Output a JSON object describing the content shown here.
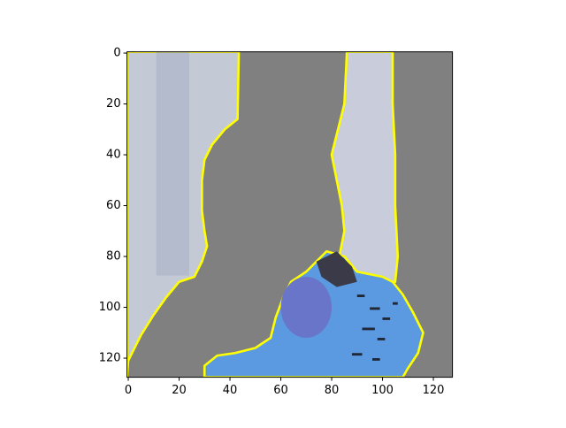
{
  "chart_data": {
    "type": "image",
    "xlim": [
      -0.5,
      127.5
    ],
    "ylim": [
      127.5,
      -0.5
    ],
    "xticks": [
      0,
      20,
      40,
      60,
      80,
      100,
      120
    ],
    "yticks": [
      0,
      20,
      40,
      60,
      80,
      100,
      120
    ]
  }
}
